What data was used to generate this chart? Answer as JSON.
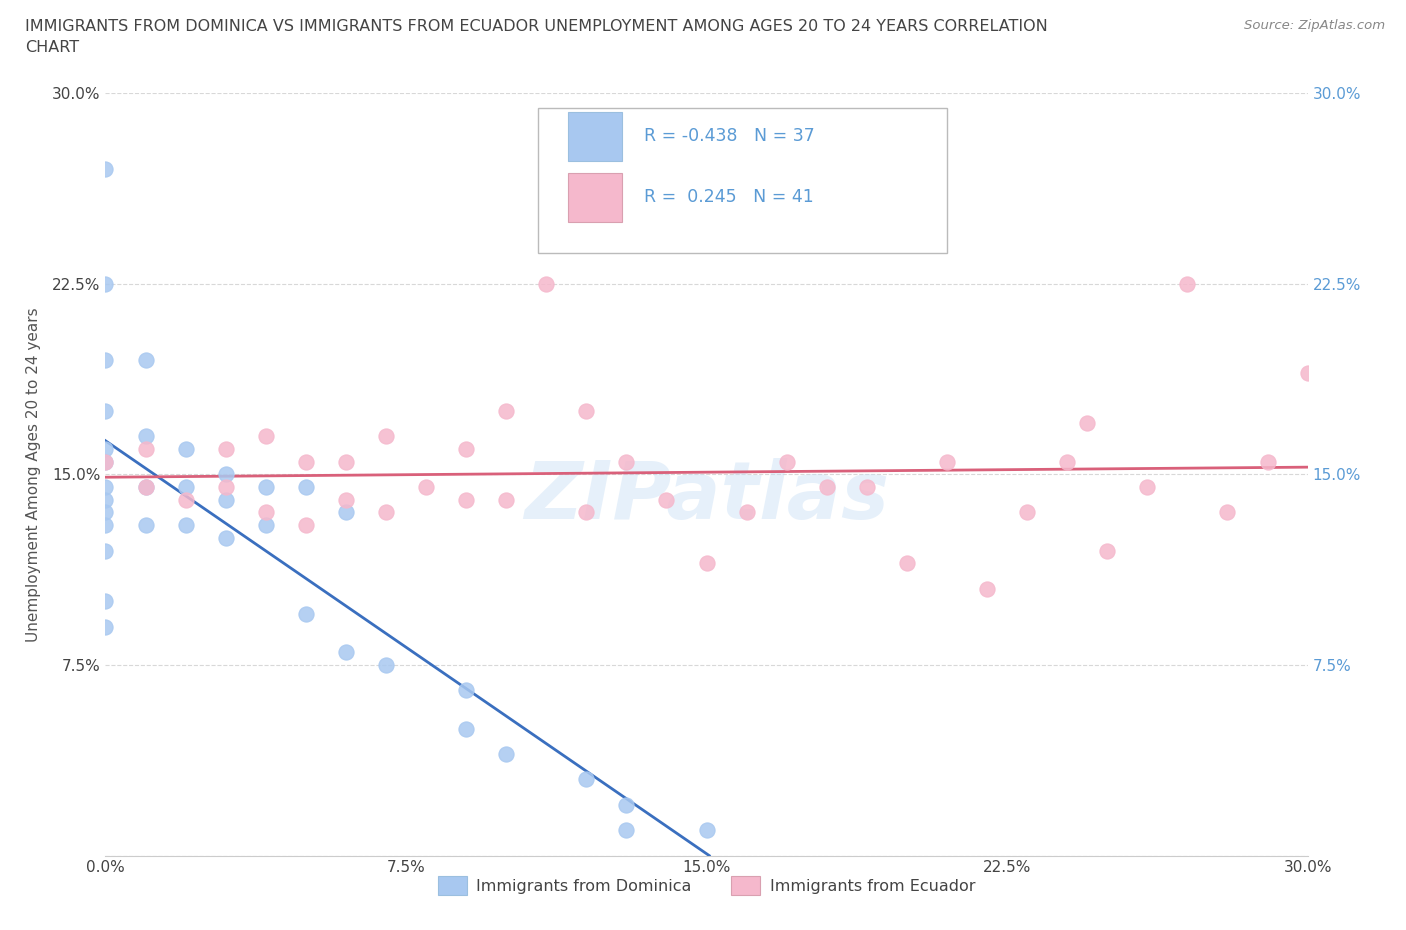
{
  "title_line1": "IMMIGRANTS FROM DOMINICA VS IMMIGRANTS FROM ECUADOR UNEMPLOYMENT AMONG AGES 20 TO 24 YEARS CORRELATION",
  "title_line2": "CHART",
  "source_text": "Source: ZipAtlas.com",
  "ylabel": "Unemployment Among Ages 20 to 24 years",
  "xmin": 0.0,
  "xmax": 0.3,
  "ymin": 0.0,
  "ymax": 0.3,
  "xticks": [
    0.0,
    0.075,
    0.15,
    0.225,
    0.3
  ],
  "yticks": [
    0.0,
    0.075,
    0.15,
    0.225,
    0.3
  ],
  "xticklabels": [
    "0.0%",
    "7.5%",
    "15.0%",
    "22.5%",
    "30.0%"
  ],
  "yticklabels": [
    "",
    "7.5%",
    "15.0%",
    "22.5%",
    "30.0%"
  ],
  "dominica_color": "#a8c8f0",
  "ecuador_color": "#f5b8cc",
  "dominica_line_color": "#3a6fbf",
  "ecuador_line_color": "#d9607a",
  "dominica_R": -0.438,
  "dominica_N": 37,
  "ecuador_R": 0.245,
  "ecuador_N": 41,
  "dominica_x": [
    0.0,
    0.0,
    0.0,
    0.0,
    0.0,
    0.0,
    0.0,
    0.0,
    0.0,
    0.0,
    0.0,
    0.0,
    0.0,
    0.01,
    0.01,
    0.01,
    0.01,
    0.02,
    0.02,
    0.02,
    0.03,
    0.03,
    0.03,
    0.04,
    0.04,
    0.05,
    0.05,
    0.06,
    0.06,
    0.07,
    0.09,
    0.09,
    0.1,
    0.12,
    0.13,
    0.13,
    0.15
  ],
  "dominica_y": [
    0.27,
    0.225,
    0.195,
    0.175,
    0.16,
    0.155,
    0.145,
    0.14,
    0.135,
    0.13,
    0.12,
    0.1,
    0.09,
    0.195,
    0.165,
    0.145,
    0.13,
    0.16,
    0.145,
    0.13,
    0.15,
    0.14,
    0.125,
    0.145,
    0.13,
    0.145,
    0.095,
    0.135,
    0.08,
    0.075,
    0.065,
    0.05,
    0.04,
    0.03,
    0.02,
    0.01,
    0.01
  ],
  "ecuador_x": [
    0.0,
    0.01,
    0.01,
    0.02,
    0.03,
    0.03,
    0.04,
    0.04,
    0.05,
    0.05,
    0.06,
    0.06,
    0.07,
    0.07,
    0.08,
    0.09,
    0.09,
    0.1,
    0.1,
    0.11,
    0.12,
    0.12,
    0.13,
    0.14,
    0.15,
    0.16,
    0.17,
    0.18,
    0.19,
    0.2,
    0.21,
    0.22,
    0.23,
    0.24,
    0.245,
    0.25,
    0.26,
    0.27,
    0.28,
    0.29,
    0.3
  ],
  "ecuador_y": [
    0.155,
    0.145,
    0.16,
    0.14,
    0.145,
    0.16,
    0.135,
    0.165,
    0.13,
    0.155,
    0.14,
    0.155,
    0.135,
    0.165,
    0.145,
    0.14,
    0.16,
    0.14,
    0.175,
    0.225,
    0.135,
    0.175,
    0.155,
    0.14,
    0.115,
    0.135,
    0.155,
    0.145,
    0.145,
    0.115,
    0.155,
    0.105,
    0.135,
    0.155,
    0.17,
    0.12,
    0.145,
    0.225,
    0.135,
    0.155,
    0.19
  ],
  "background_color": "#ffffff",
  "grid_color": "#d8d8d8",
  "right_tick_color": "#5b9bd5",
  "watermark": "ZIPatlas"
}
